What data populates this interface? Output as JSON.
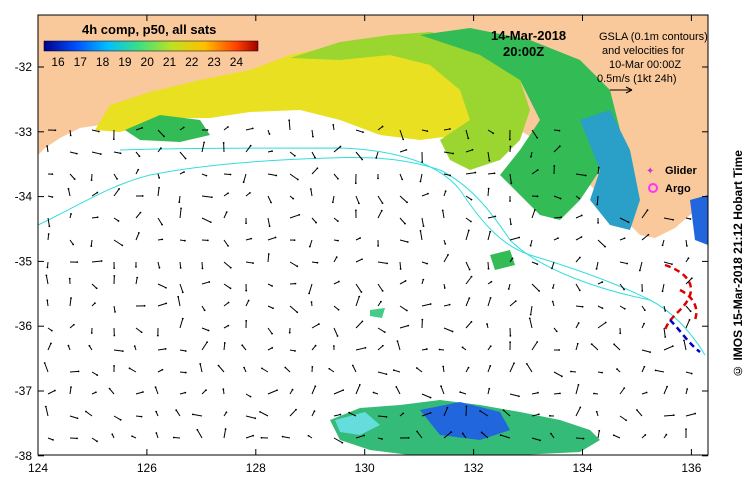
{
  "map": {
    "colorbar_title": "4h comp, p50, all sats",
    "colorbar_ticks": [
      "16",
      "17",
      "18",
      "19",
      "20",
      "21",
      "22",
      "23",
      "24"
    ],
    "date": "14-Mar-2018",
    "time": "20:00Z",
    "note_lines": [
      "GSLA (0.1m contours)",
      "and velocities for",
      "10-Mar 00:00Z",
      "0.5m/s (1kt 24h)"
    ],
    "legend": [
      {
        "label": "Glider",
        "color": "#cc33cc"
      },
      {
        "label": "Argo",
        "color": "#ff33ff"
      }
    ],
    "lon_ticks": [
      "124",
      "126",
      "128",
      "130",
      "132",
      "134",
      "136"
    ],
    "lat_ticks": [
      "-32",
      "-33",
      "-34",
      "-35",
      "-36",
      "-37",
      "-38"
    ],
    "credit": "© IMOS 15-Mar-2018 21:12 Hobart Time",
    "colors": {
      "land": "#fac99b",
      "contour": "#33dddd",
      "warm": "#e8e020",
      "cool": "#33bb55",
      "cold": "#2266dd"
    }
  }
}
